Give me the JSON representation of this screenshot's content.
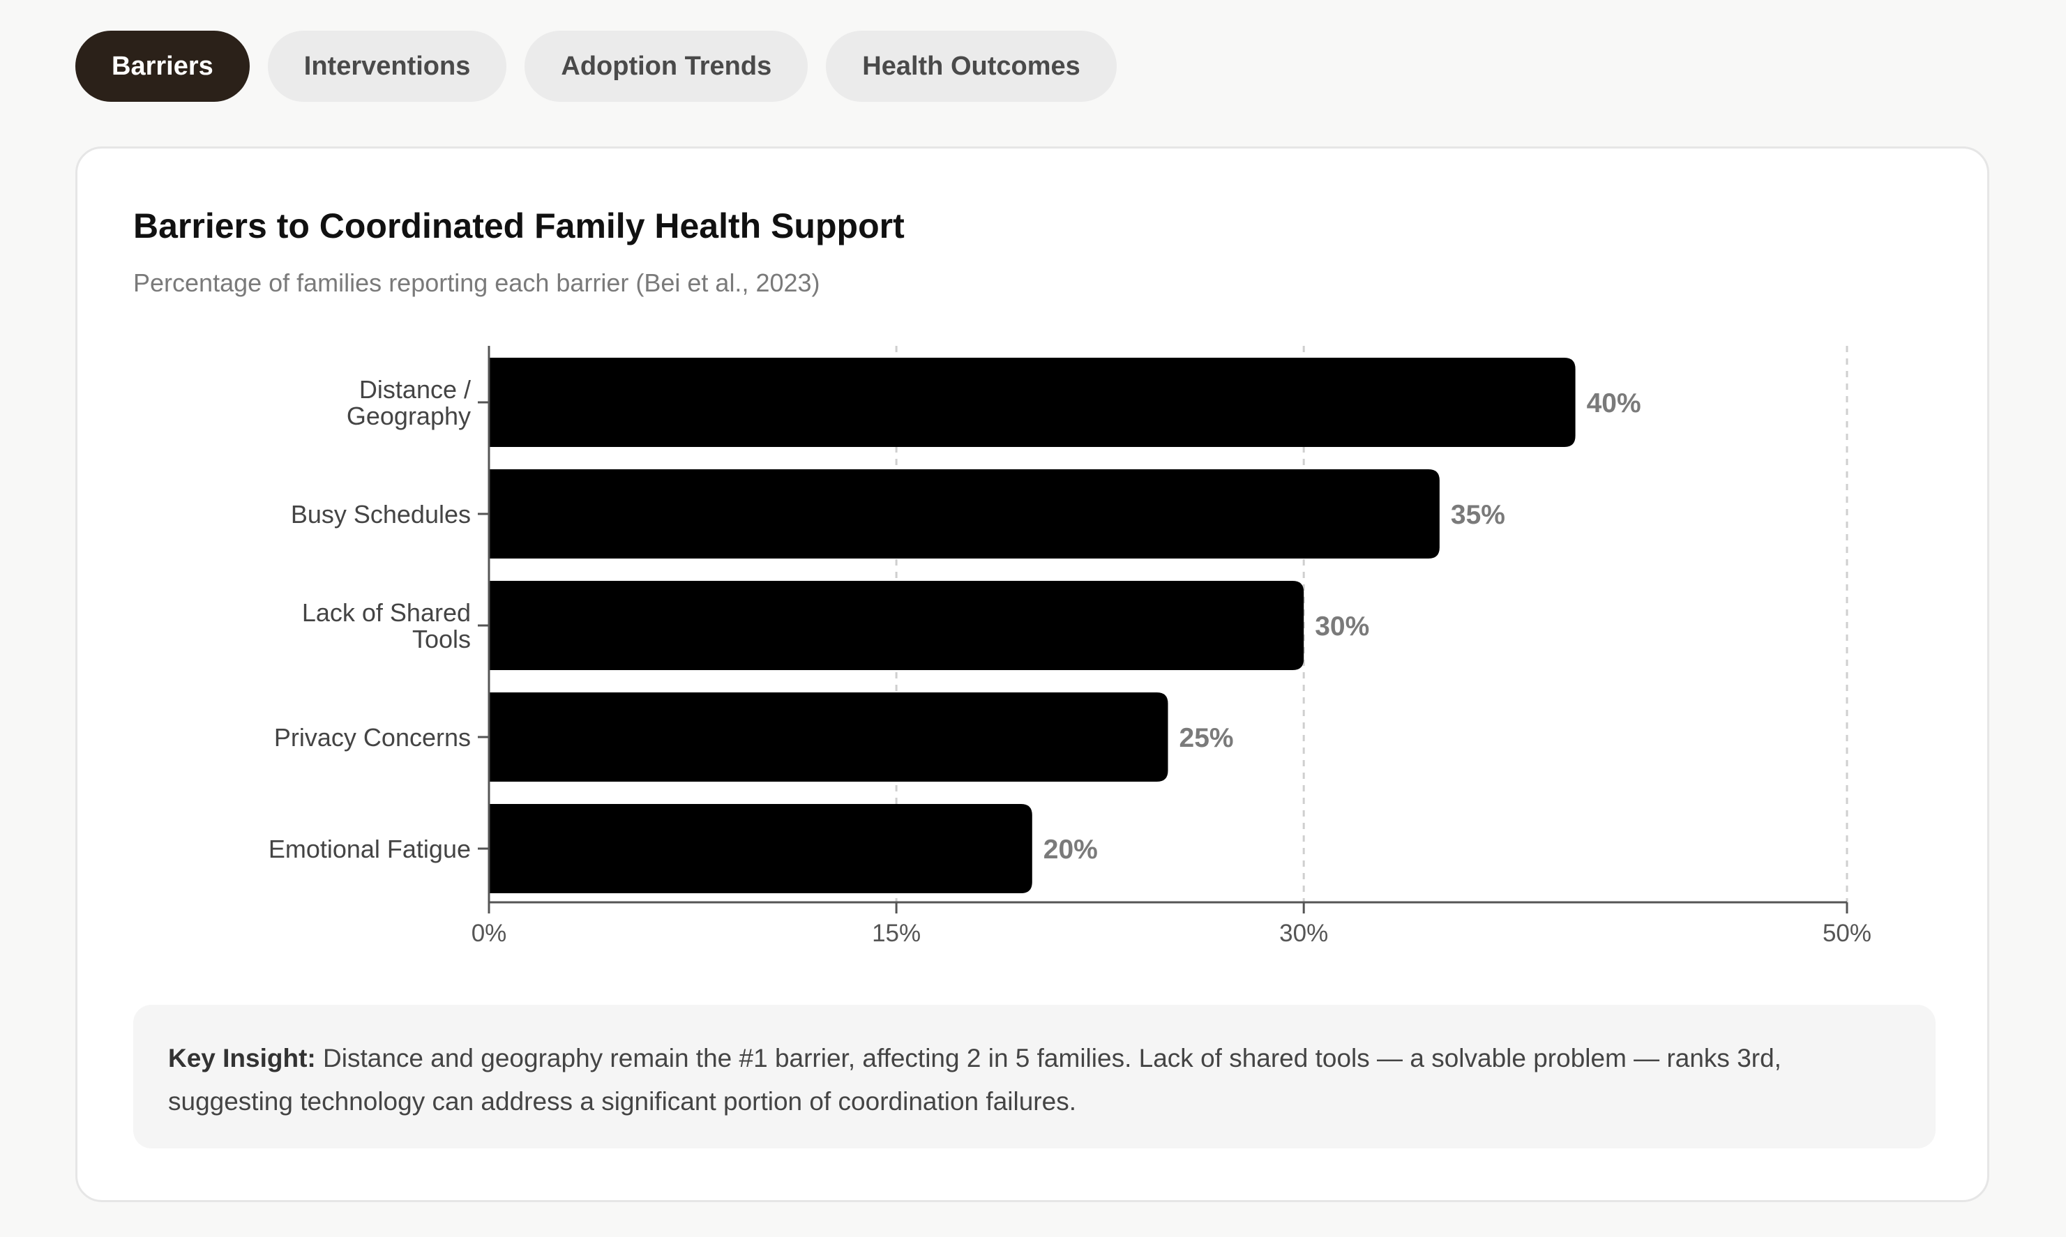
{
  "tabs": [
    {
      "label": "Barriers",
      "active": true
    },
    {
      "label": "Interventions",
      "active": false
    },
    {
      "label": "Adoption Trends",
      "active": false
    },
    {
      "label": "Health Outcomes",
      "active": false
    }
  ],
  "chart_card": {
    "title": "Barriers to Coordinated Family Health Support",
    "subtitle": "Percentage of families reporting each barrier (Bei et al., 2023)"
  },
  "chart_data": {
    "type": "bar",
    "orientation": "horizontal",
    "title": "Barriers to Coordinated Family Health Support",
    "subtitle": "Percentage of families reporting each barrier (Bei et al., 2023)",
    "categories": [
      [
        "Distance /",
        "Geography"
      ],
      [
        "Busy Schedules"
      ],
      [
        "Lack of Shared",
        "Tools"
      ],
      [
        "Privacy Concerns"
      ],
      [
        "Emotional Fatigue"
      ]
    ],
    "values": [
      40,
      35,
      30,
      25,
      20
    ],
    "value_labels": [
      "40%",
      "35%",
      "30%",
      "25%",
      "20%"
    ],
    "xlim": [
      0,
      50
    ],
    "xticks": [
      0,
      15,
      30,
      50
    ],
    "xtick_labels": [
      "0%",
      "15%",
      "30%",
      "50%"
    ],
    "xlabel": "",
    "ylabel": "",
    "grid": "vertical dashed",
    "bar_color": "#000000",
    "label_color": "#7a7a7a"
  },
  "insight": {
    "label": "Key Insight:",
    "text": "Distance and geography remain the #1 barrier, affecting 2 in 5 families. Lack of shared tools — a solvable problem — ranks 3rd, suggesting technology can address a significant portion of coordination failures."
  },
  "colors": {
    "active_tab": "#2b2119",
    "inactive_tab": "#ebebeb",
    "page_background": "#f8f8f7",
    "insight_background": "#f5f5f5"
  }
}
